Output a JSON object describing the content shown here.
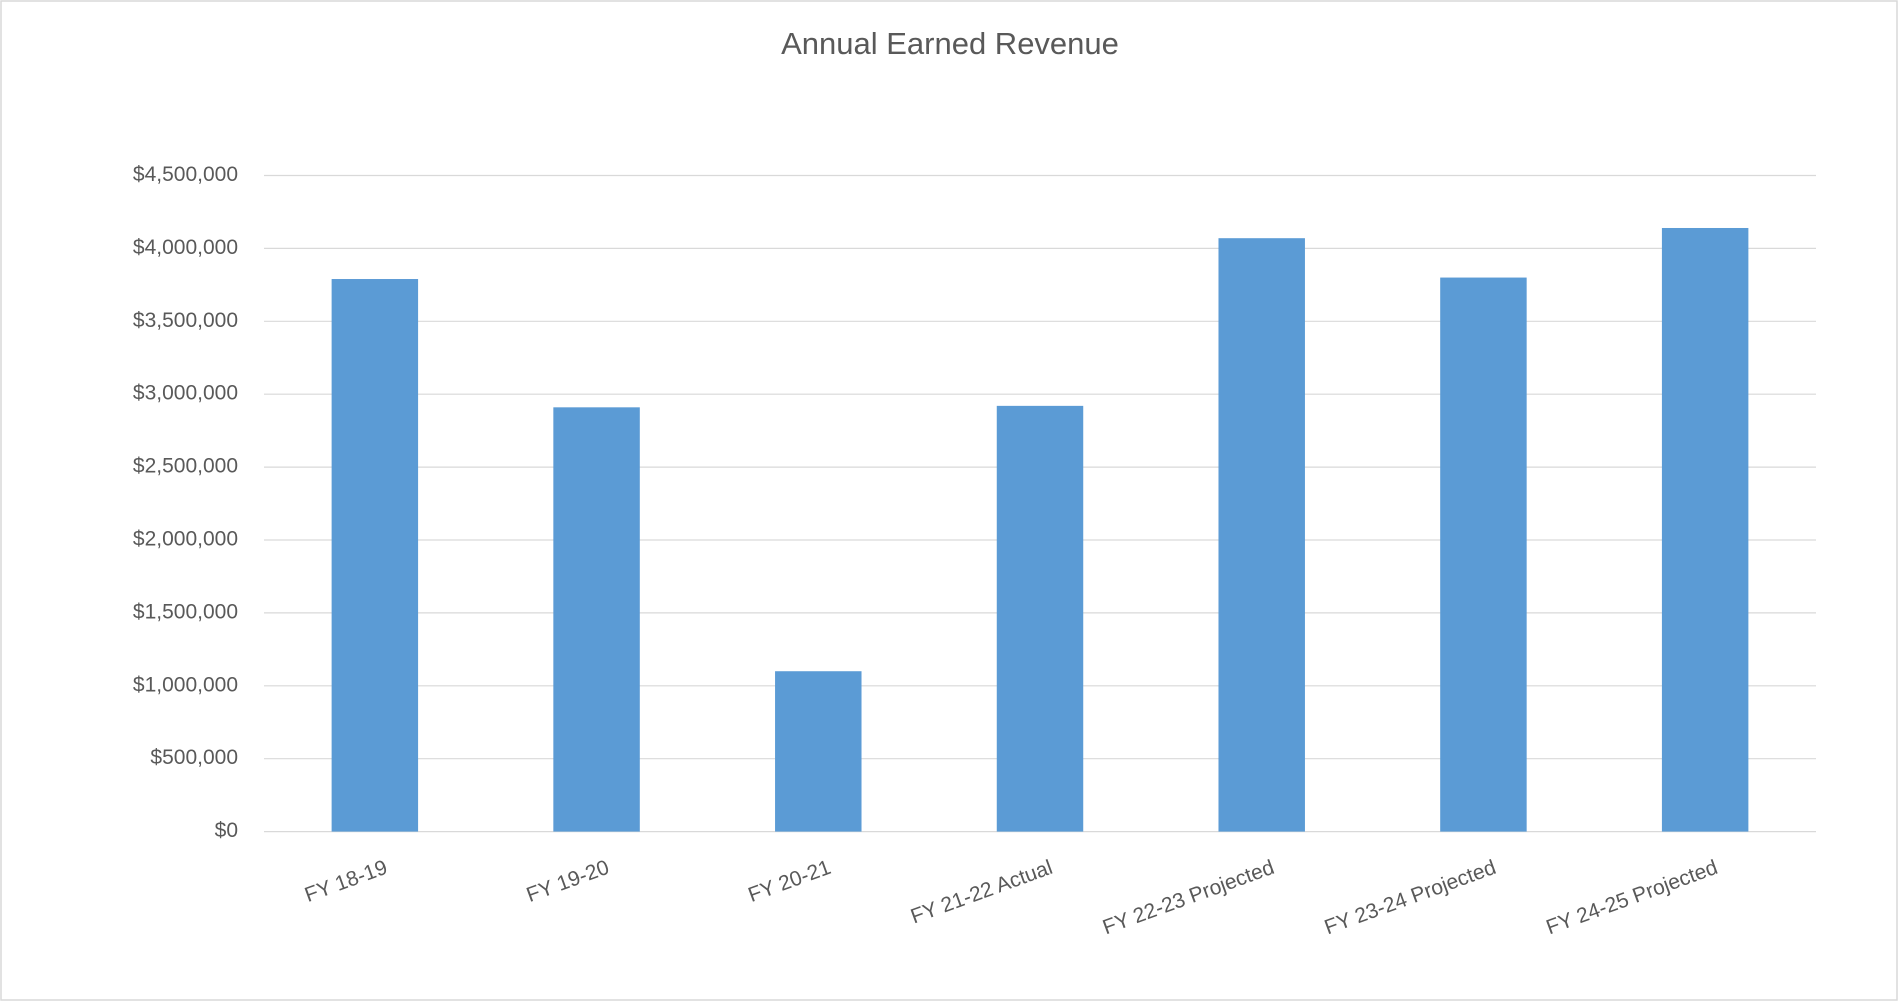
{
  "chart_data": {
    "type": "bar",
    "title": "Annual Earned Revenue",
    "categories": [
      "FY 18-19",
      "FY 19-20",
      "FY 20-21",
      "FY 21-22 Actual",
      "FY 22-23 Projected",
      "FY 23-24 Projected",
      "FY 24-25 Projected"
    ],
    "values": [
      3790000,
      2910000,
      1100000,
      2920000,
      4070000,
      3800000,
      4140000
    ],
    "color": "#5b9bd5",
    "ylim": [
      0,
      4500000
    ],
    "yticks": [
      {
        "value": 0,
        "label": "$0"
      },
      {
        "value": 500000,
        "label": "$500,000"
      },
      {
        "value": 1000000,
        "label": "$1,000,000"
      },
      {
        "value": 1500000,
        "label": "$1,500,000"
      },
      {
        "value": 2000000,
        "label": "$2,000,000"
      },
      {
        "value": 2500000,
        "label": "$2,500,000"
      },
      {
        "value": 3000000,
        "label": "$3,000,000"
      },
      {
        "value": 3500000,
        "label": "$3,500,000"
      },
      {
        "value": 4000000,
        "label": "$4,000,000"
      },
      {
        "value": 4500000,
        "label": "$4,500,000"
      }
    ],
    "grid": true
  }
}
